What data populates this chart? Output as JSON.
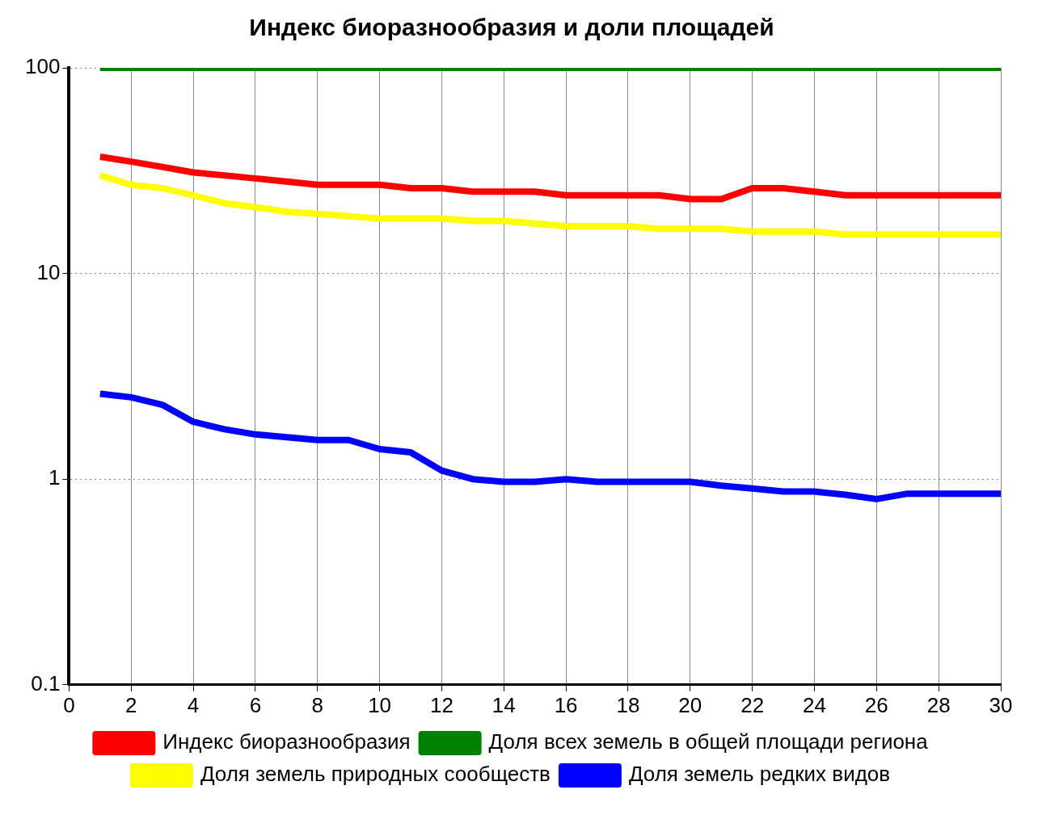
{
  "chart_data": {
    "type": "line",
    "title": "Индекс биоразнообразия и доли площадей",
    "x": [
      1,
      2,
      3,
      4,
      5,
      6,
      7,
      8,
      9,
      10,
      11,
      12,
      13,
      14,
      15,
      16,
      17,
      18,
      19,
      20,
      21,
      22,
      23,
      24,
      25,
      26,
      27,
      28,
      29,
      30
    ],
    "series": [
      {
        "name": "Индекс биоразнообразия",
        "color": "#ff0000",
        "values": [
          37,
          35,
          33,
          31,
          30,
          29,
          28,
          27,
          27,
          27,
          26,
          26,
          25,
          25,
          25,
          24,
          24,
          24,
          24,
          23,
          23,
          26,
          26,
          25,
          24,
          24,
          24,
          24,
          24,
          24
        ]
      },
      {
        "name": "Доля всех земель в общей площади региона",
        "color": "#008000",
        "values": [
          100,
          100,
          100,
          100,
          100,
          100,
          100,
          100,
          100,
          100,
          100,
          100,
          100,
          100,
          100,
          100,
          100,
          100,
          100,
          100,
          100,
          100,
          100,
          100,
          100,
          100,
          100,
          100,
          100,
          100
        ]
      },
      {
        "name": "Доля земель природных сообществ",
        "color": "#ffff00",
        "values": [
          30,
          27,
          26,
          24,
          22,
          21,
          20,
          19.5,
          19,
          18.5,
          18.5,
          18.5,
          18,
          18,
          17.5,
          17,
          17,
          17,
          16.5,
          16.5,
          16.5,
          16,
          16,
          16,
          15.5,
          15.5,
          15.5,
          15.5,
          15.5,
          15.5
        ]
      },
      {
        "name": "Доля земель редких видов",
        "color": "#0000ff",
        "values": [
          2.6,
          2.5,
          2.3,
          1.9,
          1.75,
          1.65,
          1.6,
          1.55,
          1.55,
          1.4,
          1.35,
          1.1,
          1,
          0.97,
          0.97,
          1,
          0.97,
          0.97,
          0.97,
          0.97,
          0.93,
          0.9,
          0.87,
          0.87,
          0.84,
          0.8,
          0.85,
          0.85,
          0.85,
          0.85
        ]
      }
    ],
    "xlim": [
      0,
      30
    ],
    "xticks": [
      0,
      2,
      4,
      6,
      8,
      10,
      12,
      14,
      16,
      18,
      20,
      22,
      24,
      26,
      28,
      30
    ],
    "ylim": [
      0.1,
      100
    ],
    "yticks": [
      0.1,
      1,
      10,
      100
    ],
    "log": true,
    "grid": true,
    "legend": "bottom",
    "marker": "none",
    "line_style": "solid"
  }
}
